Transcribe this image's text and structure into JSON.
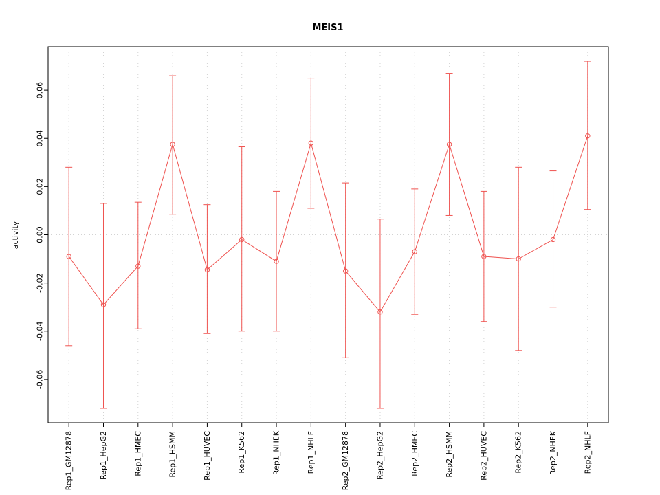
{
  "chart_data": {
    "type": "line",
    "title": "MEIS1",
    "xlabel": "",
    "ylabel": "activity",
    "legend": "none",
    "grid": "dotted vertical line per category; dotted horizontal line at zero",
    "marker": "open-circle",
    "error_bars": true,
    "series_color": "#ef5350",
    "grid_color": "#d3d3d3",
    "axis_color": "#000000",
    "ylim": [
      -0.078,
      0.078
    ],
    "yticks": [
      -0.06,
      -0.04,
      -0.02,
      0.0,
      0.02,
      0.04,
      0.06
    ],
    "categories": [
      "Rep1_GM12878",
      "Rep1_HepG2",
      "Rep1_HMEC",
      "Rep1_HSMM",
      "Rep1_HUVEC",
      "Rep1_K562",
      "Rep1_NHEK",
      "Rep1_NHLF",
      "Rep2_GM12878",
      "Rep2_HepG2",
      "Rep2_HMEC",
      "Rep2_HSMM",
      "Rep2_HUVEC",
      "Rep2_K562",
      "Rep2_NHEK",
      "Rep2_NHLF"
    ],
    "series": [
      {
        "name": "activity",
        "values": [
          -0.009,
          -0.029,
          -0.013,
          0.0375,
          -0.0145,
          -0.002,
          -0.011,
          0.038,
          -0.015,
          -0.032,
          -0.007,
          0.0375,
          -0.009,
          -0.01,
          -0.002,
          0.041
        ],
        "upper": [
          0.028,
          0.013,
          0.0135,
          0.066,
          0.0125,
          0.0365,
          0.018,
          0.065,
          0.0215,
          0.0065,
          0.019,
          0.067,
          0.018,
          0.028,
          0.0265,
          0.072
        ],
        "lower": [
          -0.046,
          -0.072,
          -0.039,
          0.0085,
          -0.041,
          -0.04,
          -0.04,
          0.011,
          -0.051,
          -0.072,
          -0.033,
          0.008,
          -0.036,
          -0.048,
          -0.03,
          0.0105
        ]
      }
    ]
  }
}
